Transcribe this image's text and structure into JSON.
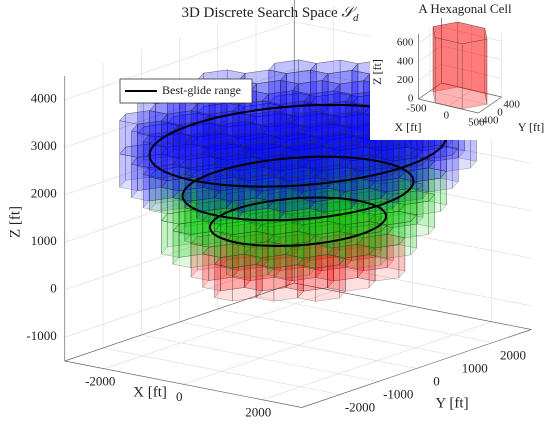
{
  "chart_data": {
    "type": "hex3d",
    "title": "3D Discrete Search Space",
    "title_symbol": "𝒮",
    "title_subscript": "d",
    "xlabel": "X [ft]",
    "ylabel": "Y [ft]",
    "zlabel": "Z [ft]",
    "xlim": [
      -3000,
      3000
    ],
    "ylim": [
      -3000,
      3000
    ],
    "zlim": [
      -1500,
      4500
    ],
    "xticks": [
      -2000,
      0,
      2000
    ],
    "yticks": [
      -2000,
      -1000,
      0,
      1000,
      2000
    ],
    "zticks": [
      -1000,
      0,
      1000,
      2000,
      3000,
      4000
    ],
    "grid": true,
    "cell_radius": 450,
    "layers": [
      {
        "zlim": [
          0,
          700
        ],
        "radius": 1800,
        "color": "#ff0000"
      },
      {
        "zlim": [
          700,
          1400
        ],
        "radius": 2200,
        "color": "#00c800"
      },
      {
        "zlim": [
          1400,
          2100
        ],
        "radius": 2600,
        "color": "#00c800"
      },
      {
        "zlim": [
          2100,
          2800
        ],
        "radius": 3000,
        "color": "#0000ff"
      },
      {
        "zlim": [
          2800,
          3500
        ],
        "radius": 3000,
        "color": "#0000ff"
      }
    ],
    "series": [
      {
        "name": "Best-glide range",
        "color": "#000000",
        "rings": [
          {
            "z": 2700,
            "radius": 2700
          },
          {
            "z": 1800,
            "radius": 2100
          },
          {
            "z": 1100,
            "radius": 1600
          }
        ]
      }
    ],
    "legend": "upper left",
    "inset": {
      "title": "A Hexagonal Cell",
      "xlabel": "X [ft]",
      "ylabel": "Y [ft]",
      "zlabel": "Z [ft]",
      "xlim": [
        -500,
        500
      ],
      "ylim": [
        -400,
        400
      ],
      "zlim": [
        0,
        700
      ],
      "xticks": [
        -500,
        0,
        500
      ],
      "yticks": [
        -400,
        0,
        400
      ],
      "zticks": [
        0,
        200,
        400,
        600
      ],
      "cell_radius": 450,
      "color": "#ff0000"
    }
  }
}
